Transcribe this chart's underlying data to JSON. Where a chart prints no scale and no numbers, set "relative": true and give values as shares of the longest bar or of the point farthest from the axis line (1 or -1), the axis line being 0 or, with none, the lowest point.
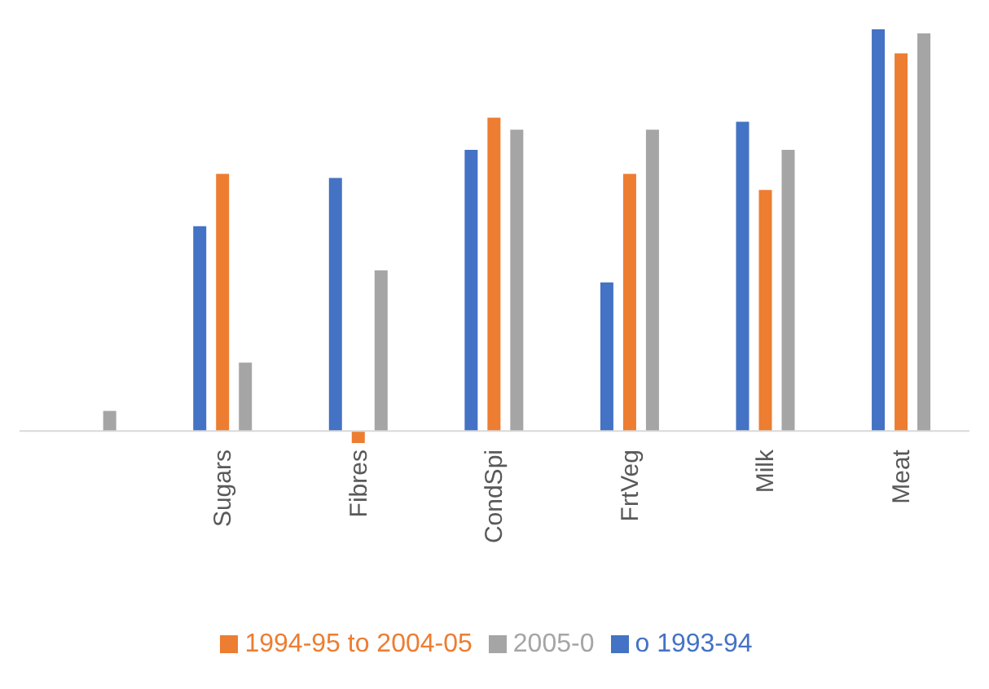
{
  "chart_data": {
    "type": "bar",
    "relative": true,
    "categories": [
      null,
      "Sugars",
      "Fibres",
      "CondSpi",
      "FrtVeg",
      "Milk",
      "Meat"
    ],
    "series": [
      {
        "name": "o 1993-94",
        "color": "#4472c4",
        "values": [
          null,
          0.51,
          0.63,
          0.7,
          0.37,
          0.77,
          1
        ]
      },
      {
        "name": "1994-95 to 2004-05",
        "color": "#ed7d31",
        "values": [
          null,
          0.64,
          -0.03,
          0.78,
          0.64,
          0.6,
          0.94
        ]
      },
      {
        "name": "2005-0",
        "color": "#a5a5a5",
        "values": [
          0.05,
          0.17,
          0.4,
          0.75,
          0.75,
          0.7,
          0.99
        ]
      }
    ],
    "legend": "bottom",
    "grid": false
  }
}
